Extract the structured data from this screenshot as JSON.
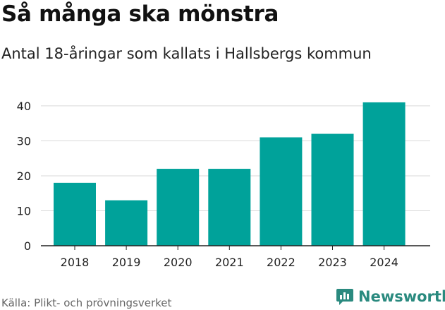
{
  "header": {
    "title": "Så många ska mönstra",
    "subtitle": "Antal 18-åringar som kallats i Hallsbergs kommun"
  },
  "footer": {
    "source": "Källa: Plikt- och prövningsverket",
    "brand": "Newsworthy"
  },
  "colors": {
    "bar": "#00a29a",
    "grid": "#d9d9d9",
    "axis": "#222222",
    "brand": "#2a8a7f"
  },
  "chart_data": {
    "type": "bar",
    "title": "Så många ska mönstra",
    "xlabel": "",
    "ylabel": "",
    "categories": [
      "2018",
      "2019",
      "2020",
      "2021",
      "2022",
      "2023",
      "2024"
    ],
    "values": [
      18,
      13,
      22,
      22,
      31,
      32,
      41
    ],
    "ylim": [
      0,
      42
    ],
    "yticks": [
      0,
      10,
      20,
      30,
      40
    ],
    "grid": true
  }
}
